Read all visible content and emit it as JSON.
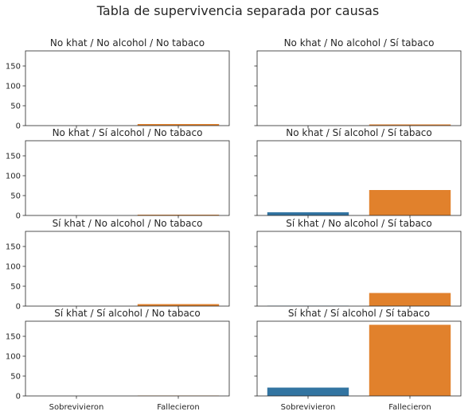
{
  "figure": {
    "title": "Tabla de supervivencia separada por causas"
  },
  "chart_data": [
    {
      "type": "bar",
      "title": "No khat / No alcohol / No tabaco",
      "categories": [
        "Sobrevivieron",
        "Fallecieron"
      ],
      "values": [
        0,
        4
      ],
      "ylim": [
        0,
        188
      ],
      "yticks": [
        0,
        50,
        100,
        150
      ]
    },
    {
      "type": "bar",
      "title": "No khat / No alcohol / Sí tabaco",
      "categories": [
        "Sobrevivieron",
        "Fallecieron"
      ],
      "values": [
        0,
        3
      ],
      "ylim": [
        0,
        188
      ],
      "yticks": [
        0,
        50,
        100,
        150
      ]
    },
    {
      "type": "bar",
      "title": "No khat / Sí alcohol / No tabaco",
      "categories": [
        "Sobrevivieron",
        "Fallecieron"
      ],
      "values": [
        0,
        2
      ],
      "ylim": [
        0,
        188
      ],
      "yticks": [
        0,
        50,
        100,
        150
      ]
    },
    {
      "type": "bar",
      "title": "No khat / Sí alcohol / Sí tabaco",
      "categories": [
        "Sobrevivieron",
        "Fallecieron"
      ],
      "values": [
        8,
        64
      ],
      "ylim": [
        0,
        188
      ],
      "yticks": [
        0,
        50,
        100,
        150
      ]
    },
    {
      "type": "bar",
      "title": "Sí khat / No alcohol / No tabaco",
      "categories": [
        "Sobrevivieron",
        "Fallecieron"
      ],
      "values": [
        0,
        5
      ],
      "ylim": [
        0,
        188
      ],
      "yticks": [
        0,
        50,
        100,
        150
      ]
    },
    {
      "type": "bar",
      "title": "Sí khat / No alcohol / Sí tabaco",
      "categories": [
        "Sobrevivieron",
        "Fallecieron"
      ],
      "values": [
        1,
        33
      ],
      "ylim": [
        0,
        188
      ],
      "yticks": [
        0,
        50,
        100,
        150
      ]
    },
    {
      "type": "bar",
      "title": "Sí khat / Sí alcohol / No tabaco",
      "categories": [
        "Sobrevivieron",
        "Fallecieron"
      ],
      "values": [
        0,
        1
      ],
      "ylim": [
        0,
        188
      ],
      "yticks": [
        0,
        50,
        100,
        150
      ]
    },
    {
      "type": "bar",
      "title": "Sí khat / Sí alcohol / Sí tabaco",
      "categories": [
        "Sobrevivieron",
        "Fallecieron"
      ],
      "values": [
        21,
        179
      ],
      "ylim": [
        0,
        188
      ],
      "yticks": [
        0,
        50,
        100,
        150
      ]
    }
  ],
  "colors": {
    "survived": "#3274a1",
    "died": "#e1812c",
    "axis": "#262626",
    "text": "#262626"
  }
}
